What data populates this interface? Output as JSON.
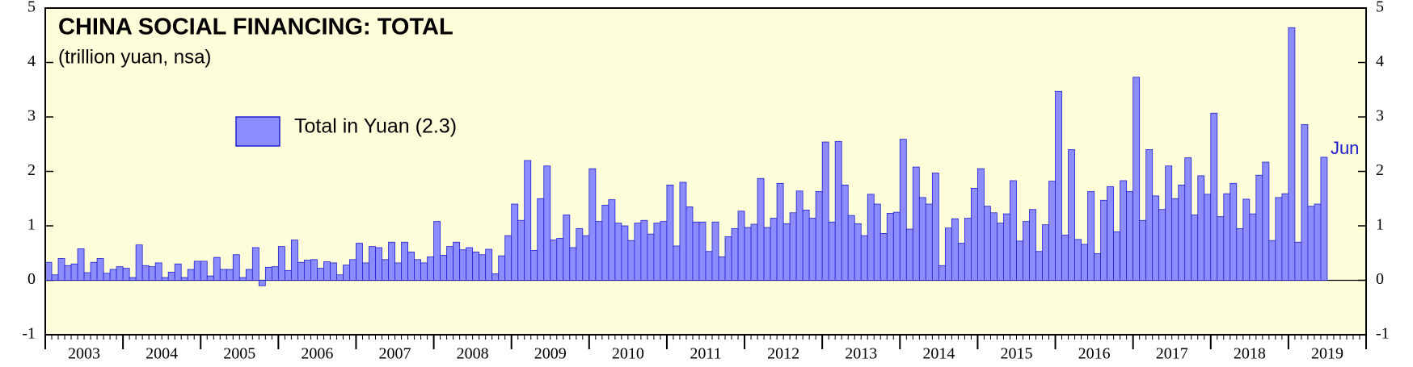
{
  "chart_data": {
    "type": "bar",
    "title": "CHINA SOCIAL FINANCING: TOTAL",
    "subtitle": "(trillion yuan, nsa)",
    "legend": "Total in Yuan (2.3)",
    "annotation": "Jun",
    "color": "#8c8cff",
    "edge_color": "#2020d0",
    "year_labels": [
      "2003",
      "2004",
      "2005",
      "2006",
      "2007",
      "2008",
      "2009",
      "2010",
      "2011",
      "2012",
      "2013",
      "2014",
      "2015",
      "2016",
      "2017",
      "2018",
      "2019"
    ],
    "values": [
      0.33,
      0.1,
      0.4,
      0.27,
      0.3,
      0.58,
      0.14,
      0.33,
      0.4,
      0.13,
      0.2,
      0.25,
      0.22,
      0.05,
      0.65,
      0.27,
      0.25,
      0.32,
      0.05,
      0.15,
      0.3,
      0.05,
      0.2,
      0.35,
      0.35,
      0.08,
      0.42,
      0.2,
      0.2,
      0.47,
      0.05,
      0.2,
      0.6,
      -0.1,
      0.24,
      0.25,
      0.62,
      0.18,
      0.74,
      0.33,
      0.37,
      0.38,
      0.22,
      0.34,
      0.32,
      0.1,
      0.28,
      0.38,
      0.68,
      0.32,
      0.62,
      0.6,
      0.38,
      0.7,
      0.32,
      0.7,
      0.52,
      0.38,
      0.32,
      0.43,
      1.08,
      0.46,
      0.62,
      0.7,
      0.56,
      0.6,
      0.52,
      0.47,
      0.57,
      0.12,
      0.45,
      0.82,
      1.4,
      1.1,
      2.2,
      0.55,
      1.5,
      2.1,
      0.74,
      0.77,
      1.2,
      0.6,
      0.95,
      0.82,
      2.05,
      1.08,
      1.38,
      1.48,
      1.05,
      1.0,
      0.73,
      1.05,
      1.1,
      0.85,
      1.05,
      1.08,
      1.75,
      0.63,
      1.8,
      1.35,
      1.07,
      1.07,
      0.53,
      1.07,
      0.43,
      0.8,
      0.95,
      1.27,
      0.97,
      1.03,
      1.87,
      0.97,
      1.14,
      1.78,
      1.04,
      1.24,
      1.64,
      1.29,
      1.14,
      1.63,
      2.54,
      1.07,
      2.55,
      1.75,
      1.19,
      1.04,
      0.82,
      1.58,
      1.4,
      0.86,
      1.23,
      1.25,
      2.59,
      0.94,
      2.08,
      1.52,
      1.4,
      1.97,
      0.27,
      0.96,
      1.13,
      0.68,
      1.14,
      1.69,
      2.05,
      1.36,
      1.24,
      1.05,
      1.22,
      1.83,
      0.72,
      1.08,
      1.3,
      0.53,
      1.02,
      1.82,
      3.47,
      0.83,
      2.4,
      0.75,
      0.66,
      1.63,
      0.49,
      1.47,
      1.72,
      0.89,
      1.83,
      1.63,
      3.73,
      1.1,
      2.4,
      1.55,
      1.3,
      2.1,
      1.5,
      1.75,
      2.25,
      1.2,
      1.92,
      1.58,
      3.07,
      1.17,
      1.59,
      1.78,
      0.95,
      1.49,
      1.22,
      1.93,
      2.17,
      0.73,
      1.52,
      1.59,
      4.64,
      0.7,
      2.86,
      1.36,
      1.4,
      2.26
    ],
    "ylim": [
      -1,
      5
    ],
    "yticks": [
      -1,
      0,
      1,
      2,
      3,
      4,
      5
    ]
  }
}
